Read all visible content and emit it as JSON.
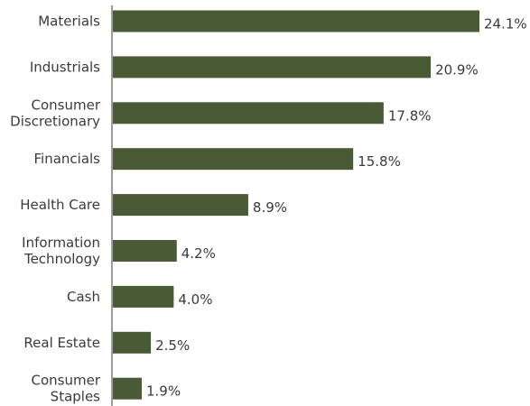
{
  "chart_data": {
    "type": "bar",
    "orientation": "horizontal",
    "categories": [
      [
        "Materials"
      ],
      [
        "Industrials"
      ],
      [
        "Consumer",
        "Discretionary"
      ],
      [
        "Financials"
      ],
      [
        "Health Care"
      ],
      [
        "Information",
        "Technology"
      ],
      [
        "Cash"
      ],
      [
        "Real Estate"
      ],
      [
        "Consumer",
        "Staples"
      ]
    ],
    "values": [
      24.1,
      20.9,
      17.8,
      15.8,
      8.9,
      4.2,
      4.0,
      2.5,
      1.9
    ],
    "value_labels": [
      "24.1%",
      "20.9%",
      "17.8%",
      "15.8%",
      "8.9%",
      "4.2%",
      "4.0%",
      "2.5%",
      "1.9%"
    ],
    "title": "",
    "xlabel": "",
    "ylabel": "",
    "xlim": [
      0,
      24.1
    ],
    "grid": false,
    "legend": "none",
    "bar_color": "#4a5a37",
    "axis_color": "#3a3a3a",
    "text_color": "#3a3a3a"
  }
}
